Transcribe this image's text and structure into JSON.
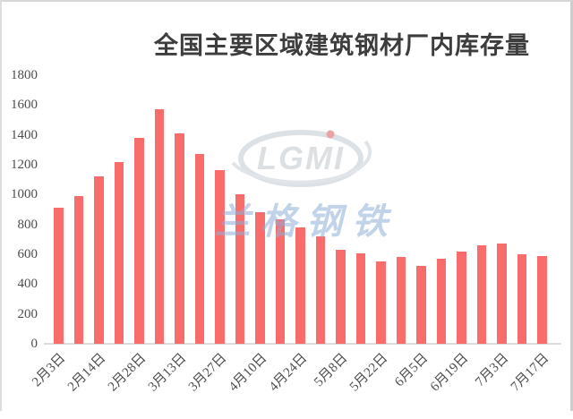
{
  "chart_data": {
    "type": "bar",
    "title": "全国主要区域建筑钢材厂内库存量",
    "xlabel": "",
    "ylabel": "",
    "ylim": [
      0,
      1800
    ],
    "ytick_step": 200,
    "yticks": [
      0,
      200,
      400,
      600,
      800,
      1000,
      1200,
      1400,
      1600,
      1800
    ],
    "grid": false,
    "legend": "none",
    "bar_color": "#f96c6c",
    "axis_label_color": "#4d4d4d",
    "title_color": "#3d3d3d",
    "x_tick_labels_visible": [
      "2月3日",
      "2月14日",
      "2月28日",
      "3月13日",
      "3月27日",
      "4月10日",
      "4月24日",
      "5月8日",
      "5月22日",
      "6月5日",
      "6月19日",
      "7月3日",
      "7月17日"
    ],
    "points": [
      {
        "label": "2月3日",
        "value": 910
      },
      {
        "label": "",
        "value": 990
      },
      {
        "label": "2月14日",
        "value": 1120
      },
      {
        "label": "",
        "value": 1220
      },
      {
        "label": "2月28日",
        "value": 1380
      },
      {
        "label": "",
        "value": 1570
      },
      {
        "label": "3月13日",
        "value": 1410
      },
      {
        "label": "",
        "value": 1270
      },
      {
        "label": "3月27日",
        "value": 1165
      },
      {
        "label": "",
        "value": 1005
      },
      {
        "label": "4月10日",
        "value": 880
      },
      {
        "label": "",
        "value": 835
      },
      {
        "label": "4月24日",
        "value": 780
      },
      {
        "label": "",
        "value": 720
      },
      {
        "label": "5月8日",
        "value": 630
      },
      {
        "label": "",
        "value": 605
      },
      {
        "label": "5月22日",
        "value": 555
      },
      {
        "label": "",
        "value": 580
      },
      {
        "label": "6月5日",
        "value": 525
      },
      {
        "label": "",
        "value": 570
      },
      {
        "label": "6月19日",
        "value": 620
      },
      {
        "label": "",
        "value": 660
      },
      {
        "label": "7月3日",
        "value": 670
      },
      {
        "label": "",
        "value": 600
      },
      {
        "label": "7月17日",
        "value": 590
      }
    ]
  },
  "watermark": {
    "logo_text": "LGMI",
    "brand_text": "兰格钢铁",
    "logo_color": "#c0c9d3",
    "logo_letter_color": "#c3c7cc",
    "text_color": "#8fb0d8",
    "accent_color": "#dc5858"
  }
}
